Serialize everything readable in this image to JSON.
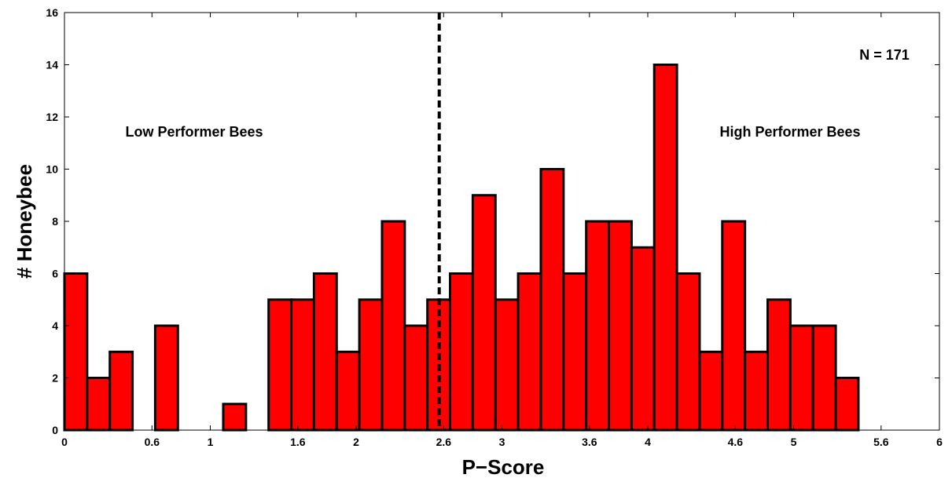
{
  "chart_data": {
    "type": "bar",
    "title": "",
    "xlabel": "P−Score",
    "ylabel": "# Honeybee",
    "xlim": [
      0,
      6
    ],
    "ylim": [
      0,
      16
    ],
    "bin_width": 0.1556,
    "bin_starts": [
      0,
      0.1556,
      0.3111,
      0.4667,
      0.6222,
      0.7778,
      0.9333,
      1.0889,
      1.2444,
      1.4,
      1.5556,
      1.7111,
      1.8667,
      2.0222,
      2.1778,
      2.3333,
      2.4889,
      2.6444,
      2.8,
      2.9556,
      3.1111,
      3.2667,
      3.4222,
      3.5778,
      3.7333,
      3.8889,
      4.0444,
      4.2,
      4.3556,
      4.5111,
      4.6667,
      4.8222,
      4.9778,
      5.1333,
      5.2889
    ],
    "values": [
      6,
      2,
      3,
      0,
      4,
      0,
      0,
      1,
      0,
      5,
      5,
      6,
      3,
      5,
      8,
      4,
      5,
      6,
      9,
      5,
      6,
      10,
      6,
      8,
      8,
      7,
      14,
      6,
      3,
      8,
      3,
      5,
      4,
      4,
      2
    ],
    "xticks": [
      0,
      0.6,
      1,
      1.6,
      2,
      2.6,
      3,
      3.6,
      4,
      4.6,
      5,
      5.6,
      6
    ],
    "xtick_labels": [
      "0",
      "0.6",
      "1",
      "1.6",
      "2",
      "2.6",
      "3",
      "3.6",
      "4",
      "4.6",
      "5",
      "5.6",
      "6"
    ],
    "yticks": [
      0,
      2,
      4,
      6,
      8,
      10,
      12,
      14,
      16
    ],
    "ytick_labels": [
      "0",
      "2",
      "4",
      "6",
      "8",
      "10",
      "12",
      "14",
      "16"
    ],
    "threshold_x": 2.57,
    "annotations": {
      "low": "Low Performer Bees",
      "high": "High Performer Bees",
      "n": "N = 171"
    },
    "bar_color": "#ff0000",
    "edge_color": "#000000",
    "grid": false
  }
}
